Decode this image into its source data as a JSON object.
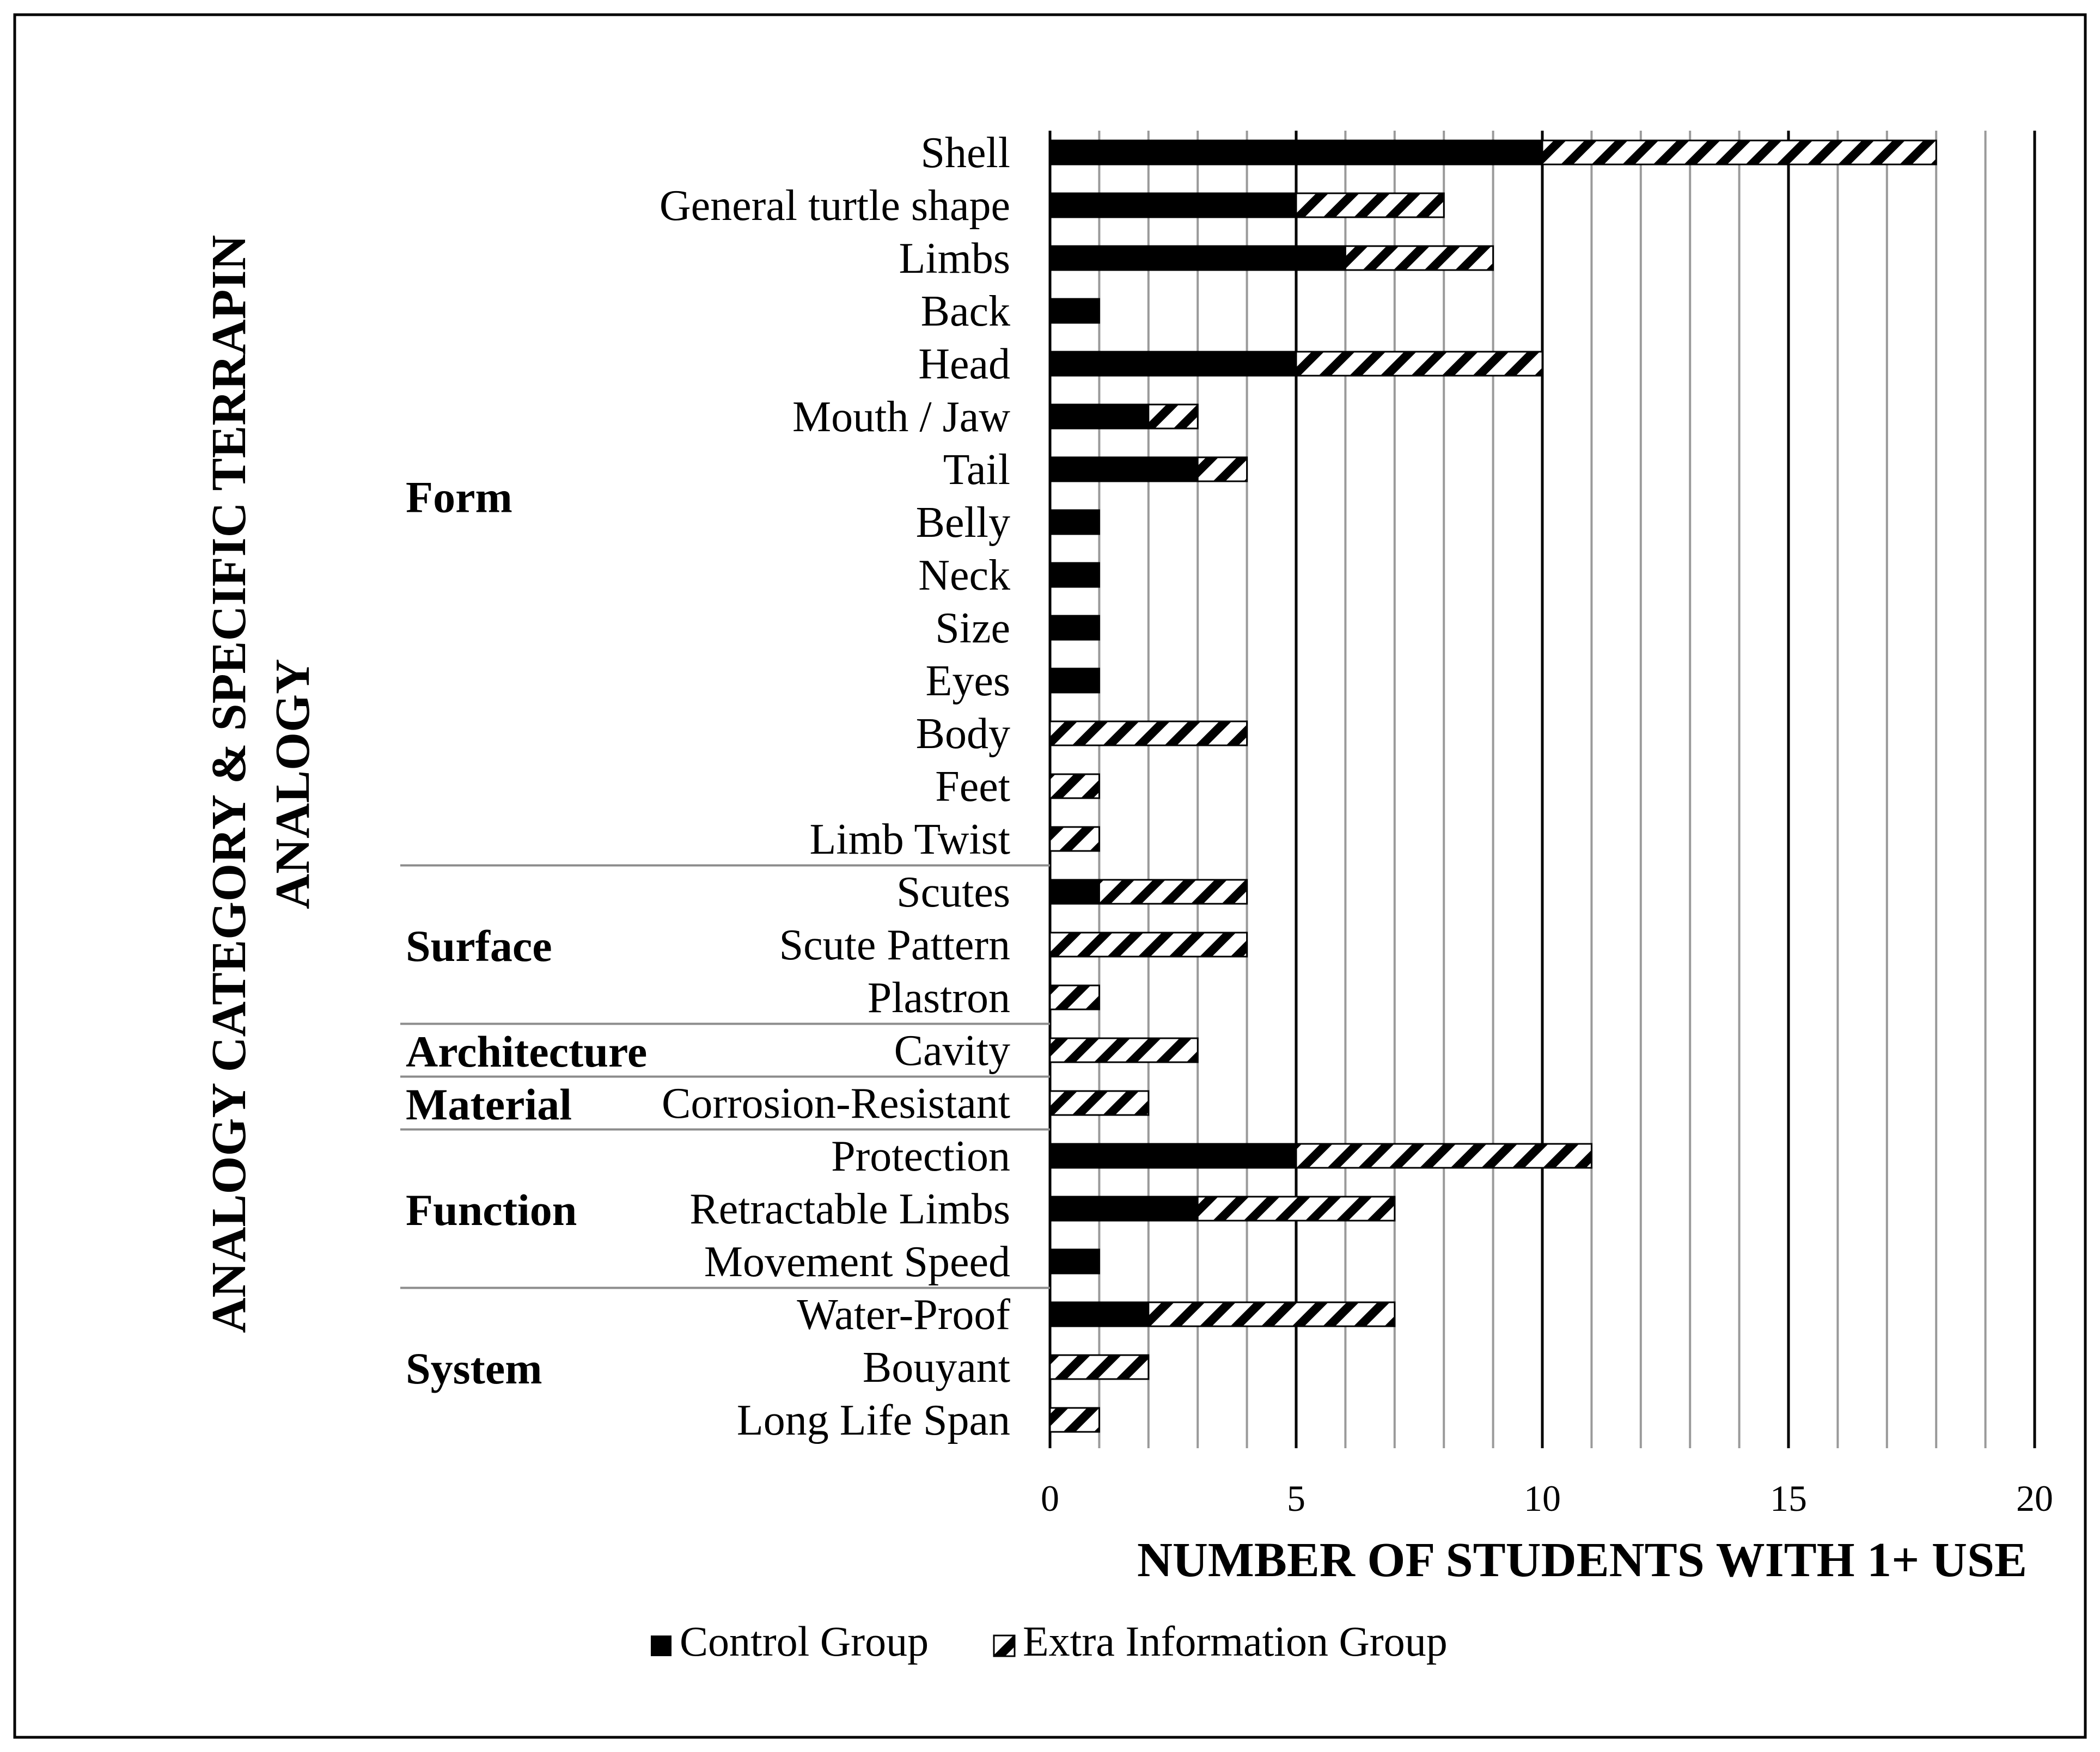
{
  "chart_data": {
    "type": "bar",
    "orientation": "horizontal",
    "stacked": true,
    "xlabel": "NUMBER OF STUDENTS WITH 1+ USE",
    "ylabel_lines": [
      "ANALOGY CATEGORY & SPECIFIC TERRAPIN",
      "ANALOGY"
    ],
    "xlim": [
      0,
      20
    ],
    "x_ticks": [
      0,
      5,
      10,
      15,
      20
    ],
    "grid": "vertical lines every 1 unit, heavier every 5",
    "legend_position": "bottom",
    "categories": [
      "Shell",
      "General turtle shape",
      "Limbs",
      "Back",
      "Head",
      "Mouth / Jaw",
      "Tail",
      "Belly",
      "Neck",
      "Size",
      "Eyes",
      "Body",
      "Feet",
      "Limb Twist",
      "Scutes",
      "Scute Pattern",
      "Plastron",
      "Cavity",
      "Corrosion-Resistant",
      "Protection",
      "Retractable Limbs",
      "Movement Speed",
      "Water-Proof",
      "Bouyant",
      "Long Life Span"
    ],
    "series": [
      {
        "name": "Control Group",
        "pattern": "solid",
        "color": "#000000",
        "values": [
          10,
          5,
          6,
          1,
          5,
          2,
          3,
          1,
          1,
          1,
          1,
          0,
          0,
          0,
          1,
          0,
          0,
          0,
          0,
          5,
          3,
          1,
          2,
          0,
          0
        ]
      },
      {
        "name": "Extra Information Group",
        "pattern": "diagonal-hatch",
        "color": "#000000",
        "values": [
          8,
          3,
          3,
          0,
          5,
          1,
          1,
          0,
          0,
          0,
          0,
          4,
          1,
          1,
          3,
          4,
          1,
          3,
          2,
          6,
          4,
          0,
          5,
          2,
          1
        ]
      }
    ],
    "groups": [
      {
        "label": "Form",
        "first": 0,
        "last": 13
      },
      {
        "label": "Surface",
        "first": 14,
        "last": 16
      },
      {
        "label": "Architecture",
        "first": 17,
        "last": 17
      },
      {
        "label": "Material",
        "first": 18,
        "last": 18
      },
      {
        "label": "Function",
        "first": 19,
        "last": 21
      },
      {
        "label": "System",
        "first": 22,
        "last": 24
      }
    ]
  }
}
